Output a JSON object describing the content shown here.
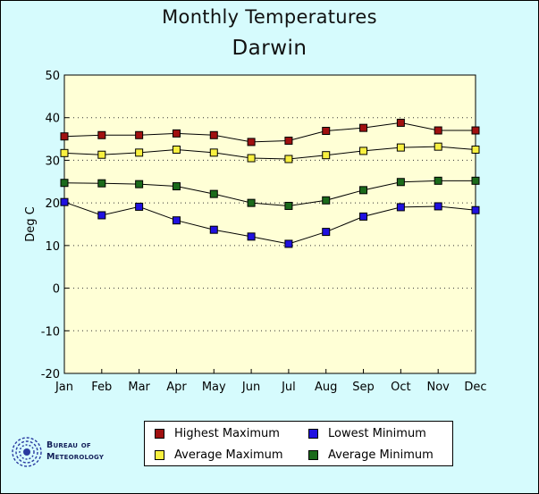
{
  "chart_data": {
    "type": "line",
    "title": "Monthly Temperatures",
    "subtitle": "Darwin",
    "xlabel": "",
    "ylabel": "Deg C",
    "ylim": [
      -20,
      50
    ],
    "yticks": [
      -20,
      -10,
      0,
      10,
      20,
      30,
      40,
      50
    ],
    "categories": [
      "Jan",
      "Feb",
      "Mar",
      "Apr",
      "May",
      "Jun",
      "Jul",
      "Aug",
      "Sep",
      "Oct",
      "Nov",
      "Dec"
    ],
    "grid": true,
    "series": [
      {
        "name": "Highest Maximum",
        "color": "#a01010",
        "values": [
          35.6,
          35.9,
          35.9,
          36.3,
          35.9,
          34.3,
          34.6,
          36.9,
          37.6,
          38.8,
          37.0,
          37.0
        ]
      },
      {
        "name": "Average Maximum",
        "color": "#f8f040",
        "values": [
          31.7,
          31.3,
          31.8,
          32.5,
          31.8,
          30.5,
          30.3,
          31.2,
          32.2,
          33.0,
          33.2,
          32.5
        ]
      },
      {
        "name": "Average Minimum",
        "color": "#1b6a1b",
        "values": [
          24.7,
          24.6,
          24.4,
          23.9,
          22.1,
          20.0,
          19.3,
          20.6,
          23.0,
          24.9,
          25.2,
          25.2
        ]
      },
      {
        "name": "Lowest Minimum",
        "color": "#2010e0",
        "values": [
          20.2,
          17.1,
          19.1,
          15.9,
          13.7,
          12.1,
          10.4,
          13.2,
          16.8,
          19.0,
          19.2,
          18.3
        ]
      }
    ],
    "legend_position": "bottom-center"
  },
  "logo": {
    "line1": "Bureau of",
    "line2": "Meteorology"
  }
}
